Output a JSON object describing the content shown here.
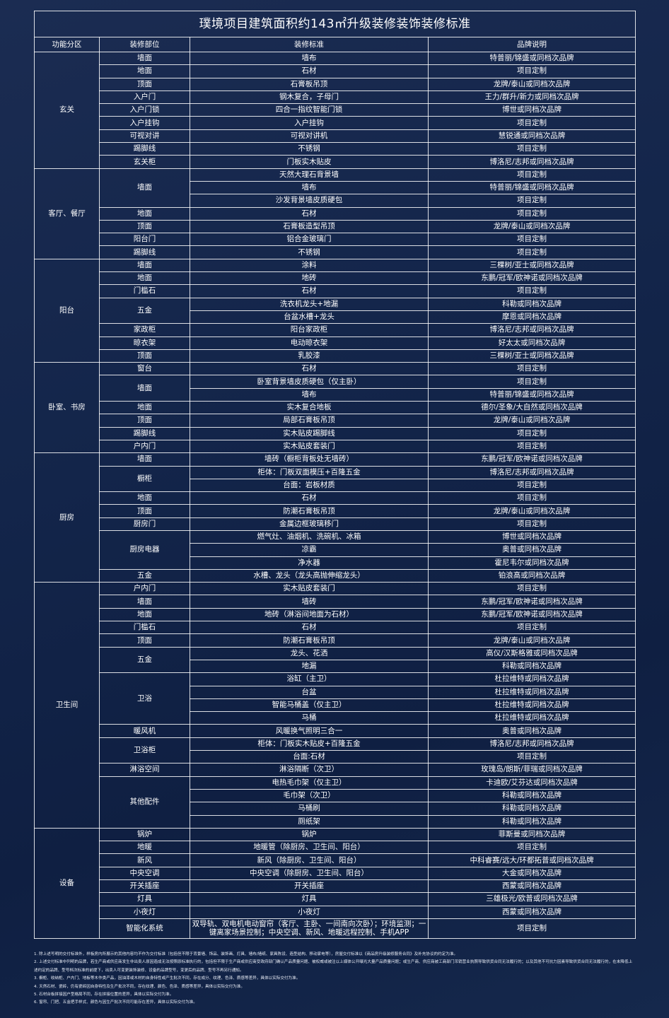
{
  "title": "璞境项目建筑面积约143㎡升级装修装饰装修标准",
  "headers": [
    "功能分区",
    "装修部位",
    "装修标准",
    "品牌说明"
  ],
  "zones": [
    {
      "name": "玄关",
      "parts": [
        {
          "name": "墙面",
          "items": [
            {
              "standard": "墙布",
              "brand": "特普丽/锦盛或同档次品牌"
            }
          ]
        },
        {
          "name": "地面",
          "items": [
            {
              "standard": "石材",
              "brand": "项目定制"
            }
          ]
        },
        {
          "name": "顶面",
          "items": [
            {
              "standard": "石膏板吊顶",
              "brand": "龙牌/泰山或同档次品牌"
            }
          ]
        },
        {
          "name": "入户门",
          "items": [
            {
              "standard": "钢木复合，子母门",
              "brand": "王力/群升/新力或同档次品牌"
            }
          ]
        },
        {
          "name": "入户门锁",
          "items": [
            {
              "standard": "四合一指纹智能门锁",
              "brand": "博世或同档次品牌"
            }
          ]
        },
        {
          "name": "入户挂钩",
          "items": [
            {
              "standard": "入户挂钩",
              "brand": "项目定制"
            }
          ]
        },
        {
          "name": "可视对讲",
          "items": [
            {
              "standard": "可视对讲机",
              "brand": "慧锐通或同档次品牌"
            }
          ]
        },
        {
          "name": "踢脚线",
          "items": [
            {
              "standard": "不锈钢",
              "brand": "项目定制"
            }
          ]
        },
        {
          "name": "玄关柜",
          "items": [
            {
              "standard": "门板实木贴皮",
              "brand": "博洛尼/志邦或同档次品牌"
            }
          ]
        }
      ]
    },
    {
      "name": "客厅、餐厅",
      "parts": [
        {
          "name": "墙面",
          "items": [
            {
              "standard": "天然大理石背景墙",
              "brand": "项目定制"
            },
            {
              "standard": "墙布",
              "brand": "特普丽/锦盛或同档次品牌"
            },
            {
              "standard": "沙发背景墙皮质硬包",
              "brand": "项目定制"
            }
          ]
        },
        {
          "name": "地面",
          "items": [
            {
              "standard": "石材",
              "brand": "项目定制"
            }
          ]
        },
        {
          "name": "顶面",
          "items": [
            {
              "standard": "石膏板造型吊顶",
              "brand": "龙牌/泰山或同档次品牌"
            }
          ]
        },
        {
          "name": "阳台门",
          "items": [
            {
              "standard": "铝合金玻璃门",
              "brand": "项目定制"
            }
          ]
        },
        {
          "name": "踢脚线",
          "items": [
            {
              "standard": "不锈钢",
              "brand": "项目定制"
            }
          ]
        }
      ]
    },
    {
      "name": "阳台",
      "parts": [
        {
          "name": "墙面",
          "items": [
            {
              "standard": "涂料",
              "brand": "三棵树/亚士或同档次品牌"
            }
          ]
        },
        {
          "name": "地面",
          "items": [
            {
              "standard": "地砖",
              "brand": "东鹏/冠军/欧神诺或同档次品牌"
            }
          ]
        },
        {
          "name": "门槛石",
          "items": [
            {
              "standard": "石材",
              "brand": "项目定制"
            }
          ]
        },
        {
          "name": "五金",
          "items": [
            {
              "standard": "洗衣机龙头+地漏",
              "brand": "科勒或同档次品牌"
            },
            {
              "standard": "台盆水槽+龙头",
              "brand": "摩恩或同档次品牌"
            }
          ]
        },
        {
          "name": "家政柜",
          "items": [
            {
              "standard": "阳台家政柜",
              "brand": "博洛尼/志邦或同档次品牌"
            }
          ]
        },
        {
          "name": "晾衣架",
          "items": [
            {
              "standard": "电动晾衣架",
              "brand": "好太太或同档次品牌"
            }
          ]
        },
        {
          "name": "顶面",
          "items": [
            {
              "standard": "乳胶漆",
              "brand": "三棵树/亚士或同档次品牌"
            }
          ]
        }
      ]
    },
    {
      "name": "卧室、书房",
      "parts": [
        {
          "name": "窗台",
          "items": [
            {
              "standard": "石材",
              "brand": "项目定制"
            }
          ]
        },
        {
          "name": "墙面",
          "items": [
            {
              "standard": "卧室背景墙皮质硬包（仅主卧）",
              "brand": "项目定制"
            },
            {
              "standard": "墙布",
              "brand": "特普丽/锦盛或同档次品牌"
            }
          ]
        },
        {
          "name": "地面",
          "items": [
            {
              "standard": "实木复合地板",
              "brand": "德尔/圣象/大自然或同档次品牌"
            }
          ]
        },
        {
          "name": "顶面",
          "items": [
            {
              "standard": "局部石膏板吊顶",
              "brand": "龙牌/泰山或同档次品牌"
            }
          ]
        },
        {
          "name": "踢脚线",
          "items": [
            {
              "standard": "实木贴皮踢脚线",
              "brand": "项目定制"
            }
          ]
        },
        {
          "name": "户内门",
          "items": [
            {
              "standard": "实木贴皮套装门",
              "brand": "项目定制"
            }
          ]
        }
      ]
    },
    {
      "name": "厨房",
      "parts": [
        {
          "name": "墙面",
          "items": [
            {
              "standard": "墙砖（橱柜背板处无墙砖）",
              "brand": "东鹏/冠军/欧神诺或同档次品牌"
            }
          ]
        },
        {
          "name": "橱柜",
          "items": [
            {
              "standard": "柜体：门板双面模压+百隆五金",
              "brand": "博洛尼/志邦或同档次品牌"
            },
            {
              "standard": "台面：岩板材质",
              "brand": "项目定制"
            }
          ]
        },
        {
          "name": "地面",
          "items": [
            {
              "standard": "石材",
              "brand": "项目定制"
            }
          ]
        },
        {
          "name": "顶面",
          "items": [
            {
              "standard": "防潮石膏板吊顶",
              "brand": "龙牌/泰山或同档次品牌"
            }
          ]
        },
        {
          "name": "厨房门",
          "items": [
            {
              "standard": "金属边框玻璃移门",
              "brand": "项目定制"
            }
          ]
        },
        {
          "name": "厨房电器",
          "items": [
            {
              "standard": "燃气灶、油烟机、洗碗机、冰箱",
              "brand": "博世或同档次品牌"
            },
            {
              "standard": "凉霸",
              "brand": "奥普或同档次品牌"
            },
            {
              "standard": "净水器",
              "brand": "霍尼韦尔或同档次品牌"
            }
          ]
        },
        {
          "name": "五金",
          "items": [
            {
              "standard": "水槽、龙头（龙头高抛伸缩龙头）",
              "brand": "铂浪高或同档次品牌"
            }
          ]
        }
      ]
    },
    {
      "name": "卫生间",
      "parts": [
        {
          "name": "户内门",
          "items": [
            {
              "standard": "实木贴皮套装门",
              "brand": "项目定制"
            }
          ]
        },
        {
          "name": "墙面",
          "items": [
            {
              "standard": "墙砖",
              "brand": "东鹏/冠军/欧神诺或同档次品牌"
            }
          ]
        },
        {
          "name": "地面",
          "items": [
            {
              "standard": "地砖（淋浴间地面为石材）",
              "brand": "东鹏/冠军/欧神诺或同档次品牌"
            }
          ]
        },
        {
          "name": "门槛石",
          "items": [
            {
              "standard": "石材",
              "brand": "项目定制"
            }
          ]
        },
        {
          "name": "顶面",
          "items": [
            {
              "standard": "防潮石膏板吊顶",
              "brand": "龙牌/泰山或同档次品牌"
            }
          ]
        },
        {
          "name": "五金",
          "items": [
            {
              "standard": "龙头、花洒",
              "brand": "高仪/汉斯格雅或同档次品牌"
            },
            {
              "standard": "地漏",
              "brand": "科勒或同档次品牌"
            }
          ]
        },
        {
          "name": "卫浴",
          "items": [
            {
              "standard": "浴缸（主卫）",
              "brand": "杜拉维特或同档次品牌"
            },
            {
              "standard": "台盆",
              "brand": "杜拉维特或同档次品牌"
            },
            {
              "standard": "智能马桶盖（仅主卫）",
              "brand": "杜拉维特或同档次品牌"
            },
            {
              "standard": "马桶",
              "brand": "杜拉维特或同档次品牌"
            }
          ]
        },
        {
          "name": "暖风机",
          "items": [
            {
              "standard": "风暖换气照明三合一",
              "brand": "奥普或同档次品牌"
            }
          ]
        },
        {
          "name": "卫浴柜",
          "items": [
            {
              "standard": "柜体：门板实木贴皮+百隆五金",
              "brand": "博洛尼/志邦或同档次品牌"
            },
            {
              "standard": "台面:石材",
              "brand": "项目定制"
            }
          ]
        },
        {
          "name": "淋浴空间",
          "items": [
            {
              "standard": "淋浴隔断（次卫）",
              "brand": "玫瑰岛/朗斯/菲瑞或同档次品牌"
            }
          ]
        },
        {
          "name": "其他配件",
          "items": [
            {
              "standard": "电热毛巾架（仅主卫）",
              "brand": "卡迪欧/艾芬达或同档次品牌"
            },
            {
              "standard": "毛巾架（次卫）",
              "brand": "科勒或同档次品牌"
            },
            {
              "standard": "马桶刷",
              "brand": "科勒或同档次品牌"
            },
            {
              "standard": "厕纸架",
              "brand": "科勒或同档次品牌"
            }
          ]
        }
      ]
    },
    {
      "name": "设备",
      "parts": [
        {
          "name": "锅炉",
          "items": [
            {
              "standard": "锅炉",
              "brand": "菲斯曼或同档次品牌"
            }
          ]
        },
        {
          "name": "地暖",
          "items": [
            {
              "standard": "地暖管（除厨房、卫生间、阳台）",
              "brand": "项目定制"
            }
          ]
        },
        {
          "name": "新风",
          "items": [
            {
              "standard": "新风（除厨房、卫生间、阳台）",
              "brand": "中科睿赛/远大/环都拓普或同档次品牌"
            }
          ]
        },
        {
          "name": "中央空调",
          "items": [
            {
              "standard": "中央空调（除厨房、卫生间、阳台）",
              "brand": "大金或同档次品牌"
            }
          ]
        },
        {
          "name": "开关插座",
          "items": [
            {
              "standard": "开关插座",
              "brand": "西蒙或同档次品牌"
            }
          ]
        },
        {
          "name": "灯具",
          "items": [
            {
              "standard": "灯具",
              "brand": "三雄极光/欧普或同档次品牌"
            }
          ]
        },
        {
          "name": "小夜灯",
          "items": [
            {
              "standard": "小夜灯",
              "brand": "西蒙或同档次品牌"
            }
          ]
        },
        {
          "name": "智能化系统",
          "items": [
            {
              "standard": "双导轨、双电机电动窗帘（客厅、主卧、一间南向次卧）；环境监测；一键离家场景控制；中央空调、新风、地暖远程控制、手机APP",
              "brand": "项目定制"
            }
          ]
        }
      ]
    }
  ],
  "notes": [
    "1. 除上述写明的交付标准外，样板房内所展示的其他内容均不作为交付标准（包括但不限于背景墙、饰品、装饰画、灯具、墙布/墙纸、家具陈设、造型结构、移动家电等），房屋交付标准以《商品房升级装修服务合同》及补充协议的约定为准。",
    "2. 上述交付标准中列明的品牌，若生产商或供应商发生非出卖人原因造成无法按照原标准执行的，包括但不限于生产商或供应商受政府部门确认产品质量问题、被权威或被注以上媒体公开曝光大量产品质量问题；或生产商、供应商被工商部门吊销营业执照导致供货合同无法履行的；以及其他不可抗力因素导致供货合同无法履行的，在未降低上述约定的品牌、型号档次标准的前提下，出卖人可变更装饰装修、设备的品牌型号，变更后的品牌、型号不再另行通知。",
    "3. 橱柜、收纳柜、户内门、地板等木作类产品，因油漆或木材的自身特性或产生批次不同，存在成分、纹理、色泽、质感等差异，具体以实际交付为准。",
    "4. 天然石材、瓷砖，仍有瓷砖因自身特性及生产批次不同，存在纹理、颜色、色泽、质感等差异，具体以实际交付为准。",
    "5. 石材台板拼接因户型格局不同，存在拼接位置的差异，具体以实际交付为准。",
    "6. 窗帘、门把、五金把手样式、颜色与因生产批次不同可能存在差异，具体以实际交付为准。"
  ]
}
